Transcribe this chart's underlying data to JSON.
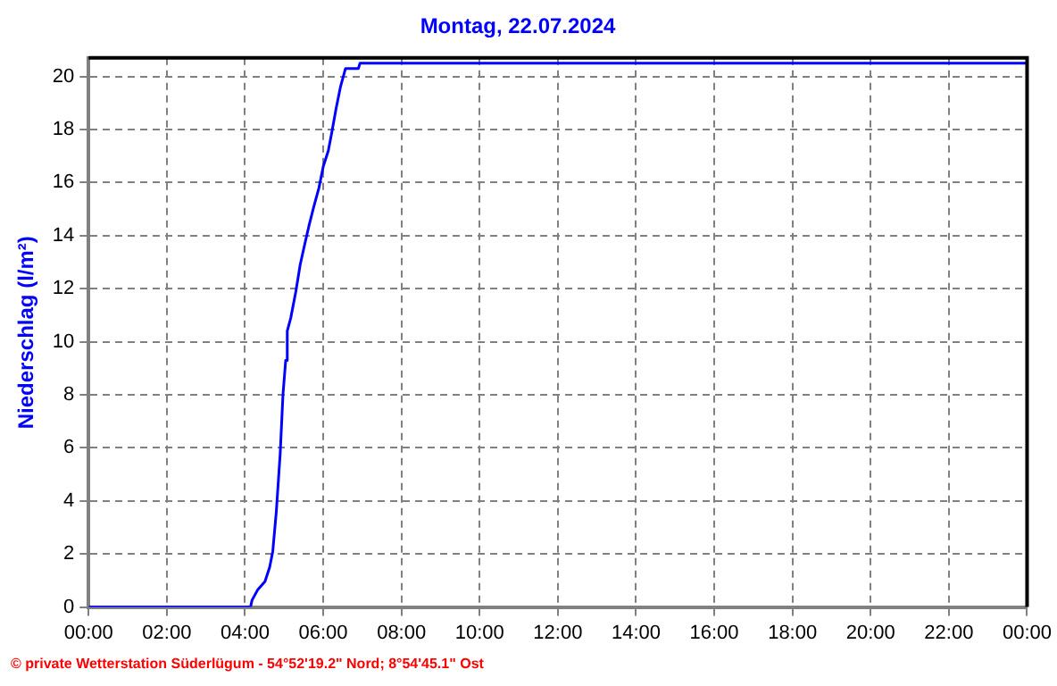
{
  "chart_data": {
    "type": "line",
    "title": "Montag, 22.07.2024",
    "ylabel": "Niederschlag (l/m²)",
    "annotations": [
      "© private Wetterstation Süderlügum  -  54°52'19.2\" Nord; 8°54'45.1\" Ost"
    ],
    "x": [
      0,
      4.14,
      4.18,
      4.32,
      4.51,
      4.63,
      4.71,
      4.8,
      4.9,
      4.97,
      5.04,
      5.08,
      5.17,
      5.3,
      5.41,
      5.53,
      5.64,
      5.76,
      5.89,
      6.0,
      6.13,
      6.22,
      6.33,
      6.44,
      6.57,
      6.9,
      6.94,
      24
    ],
    "series": [
      {
        "color": "#0000ff",
        "values": [
          0,
          0,
          0.26,
          0.64,
          0.96,
          1.5,
          2.1,
          3.6,
          5.8,
          8.0,
          9.3,
          10.4,
          10.9,
          11.9,
          12.9,
          13.7,
          14.4,
          15.1,
          15.8,
          16.6,
          17.2,
          17.9,
          18.8,
          19.6,
          20.3,
          20.3,
          20.5,
          20.5
        ]
      }
    ],
    "xlim": [
      0,
      24
    ],
    "xticks": [
      {
        "value": 0,
        "label": "00:00"
      },
      {
        "value": 2,
        "label": "02:00"
      },
      {
        "value": 4,
        "label": "04:00"
      },
      {
        "value": 6,
        "label": "06:00"
      },
      {
        "value": 8,
        "label": "08:00"
      },
      {
        "value": 10,
        "label": "10:00"
      },
      {
        "value": 12,
        "label": "12:00"
      },
      {
        "value": 14,
        "label": "14:00"
      },
      {
        "value": 16,
        "label": "16:00"
      },
      {
        "value": 18,
        "label": "18:00"
      },
      {
        "value": 20,
        "label": "20:00"
      },
      {
        "value": 22,
        "label": "22:00"
      },
      {
        "value": 24,
        "label": "00:00"
      }
    ],
    "ylim": [
      0,
      20.7
    ],
    "yticks": [
      0,
      2,
      4,
      6,
      8,
      10,
      12,
      14,
      16,
      18,
      20
    ],
    "grid": true,
    "legend": false,
    "marker": "none",
    "line_style": "solid"
  }
}
